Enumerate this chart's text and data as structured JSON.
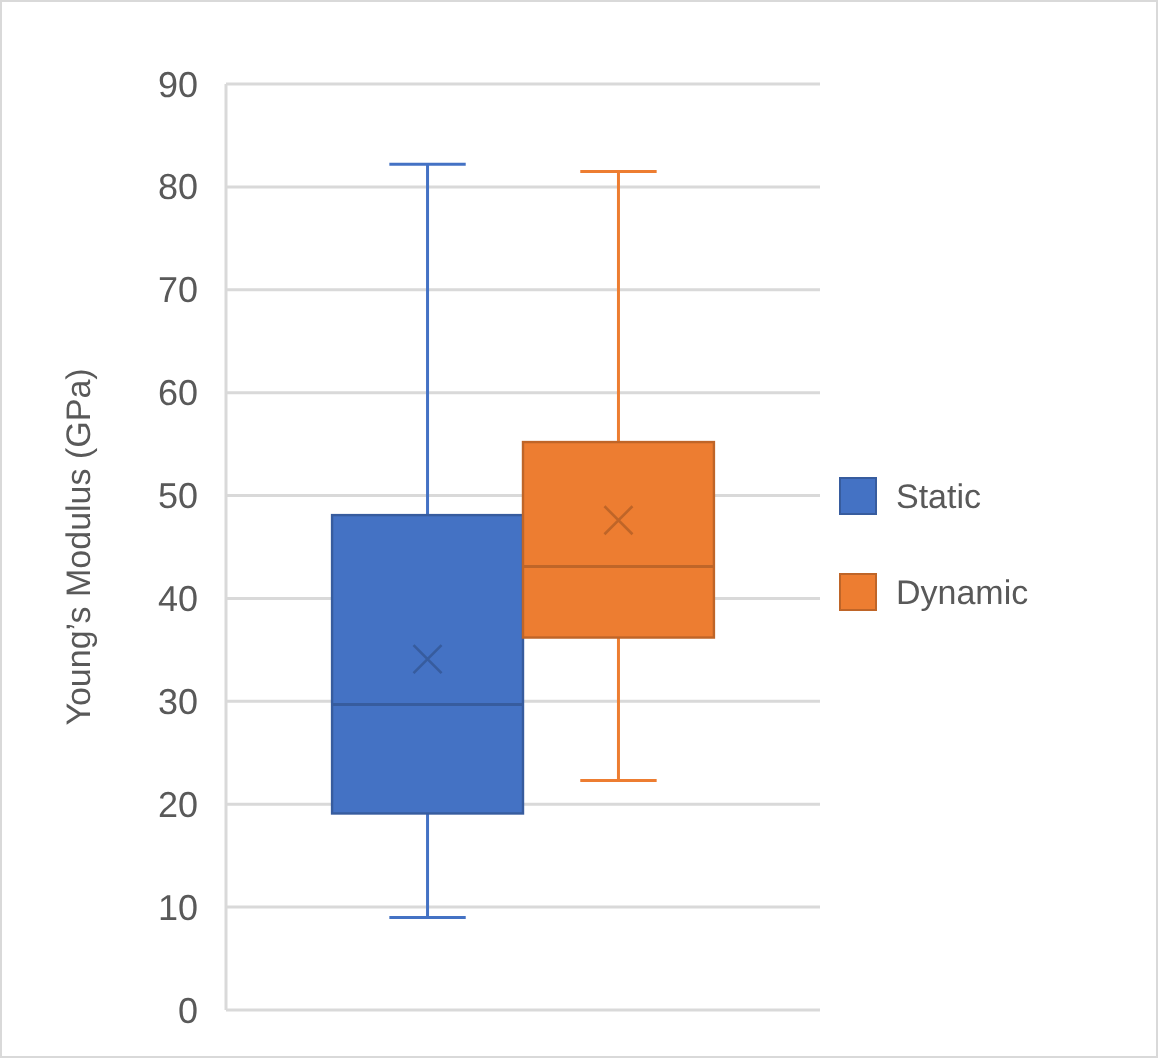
{
  "chart_data": {
    "type": "box",
    "ylabel": "Young’s Modulus (GPa)",
    "categories": [
      null
    ],
    "ylim": [
      0,
      90
    ],
    "yticks": [
      0,
      10,
      20,
      30,
      40,
      50,
      60,
      70,
      80,
      90
    ],
    "grid": "y",
    "legend": "right",
    "marker": "cross",
    "series": [
      {
        "name": "Static",
        "color": "#4472c4",
        "boxes": [
          {
            "low": 9.0,
            "q1": 19.1,
            "median": 29.7,
            "q3": 48.1,
            "high": 82.2,
            "mean": 34.1
          }
        ]
      },
      {
        "name": "Dynamic",
        "color": "#ed7d31",
        "boxes": [
          {
            "low": 22.3,
            "q1": 36.2,
            "median": 43.1,
            "q3": 55.2,
            "high": 81.5,
            "mean": 47.6
          }
        ]
      }
    ]
  }
}
